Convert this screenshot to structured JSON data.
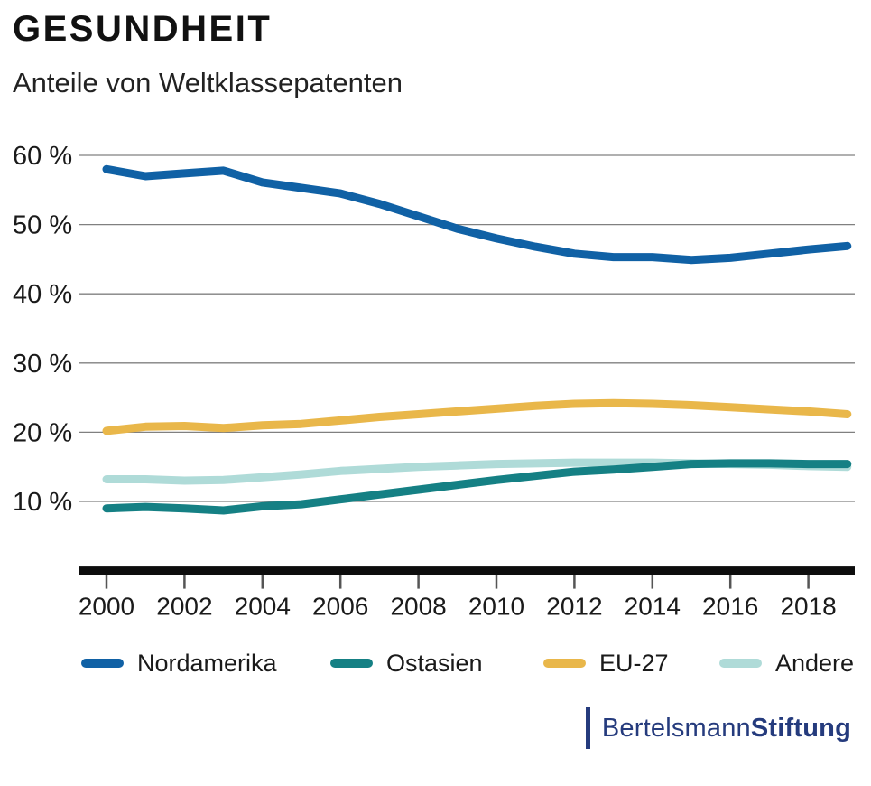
{
  "chart_data": {
    "type": "line",
    "title": "GESUNDHEIT",
    "subtitle": "Anteile von Weltklassepatenten",
    "x": [
      2000,
      2001,
      2002,
      2003,
      2004,
      2005,
      2006,
      2007,
      2008,
      2009,
      2010,
      2011,
      2012,
      2013,
      2014,
      2015,
      2016,
      2017,
      2018,
      2019
    ],
    "series": [
      {
        "name": "Nordamerika",
        "color": "#1061a5",
        "values": [
          58.0,
          57.0,
          57.4,
          57.8,
          56.1,
          55.3,
          54.5,
          53.0,
          51.2,
          49.4,
          48.0,
          46.8,
          45.8,
          45.3,
          45.3,
          44.9,
          45.2,
          45.8,
          46.4,
          46.9
        ]
      },
      {
        "name": "Ostasien",
        "color": "#158084",
        "values": [
          9.0,
          9.2,
          9.0,
          8.7,
          9.3,
          9.6,
          10.3,
          11.0,
          11.7,
          12.4,
          13.1,
          13.7,
          14.3,
          14.6,
          15.0,
          15.4,
          15.5,
          15.5,
          15.4,
          15.4
        ]
      },
      {
        "name": "EU-27",
        "color": "#e9b74a",
        "values": [
          20.2,
          20.8,
          20.9,
          20.6,
          21.0,
          21.2,
          21.7,
          22.2,
          22.6,
          23.0,
          23.4,
          23.8,
          24.1,
          24.2,
          24.1,
          23.9,
          23.6,
          23.3,
          23.0,
          22.6
        ]
      },
      {
        "name": "Andere",
        "color": "#afdbd8",
        "values": [
          13.2,
          13.2,
          13.0,
          13.1,
          13.5,
          13.9,
          14.4,
          14.7,
          15.0,
          15.2,
          15.4,
          15.5,
          15.6,
          15.6,
          15.6,
          15.5,
          15.4,
          15.3,
          15.1,
          15.0
        ]
      }
    ],
    "ylim": [
      0,
      62
    ],
    "yticks": [
      {
        "value": 10,
        "label": "10 %"
      },
      {
        "value": 20,
        "label": "20 %"
      },
      {
        "value": 30,
        "label": "30 %"
      },
      {
        "value": 40,
        "label": "40 %"
      },
      {
        "value": 50,
        "label": "50 %"
      },
      {
        "value": 60,
        "label": "60 %"
      }
    ],
    "xticks": [
      2000,
      2002,
      2004,
      2006,
      2008,
      2010,
      2012,
      2014,
      2016,
      2018
    ],
    "grid": "horizontal",
    "legend_position": "bottom"
  },
  "colors": {
    "grid": "#808080",
    "axis": "#0d0d0d",
    "tick": "#555555",
    "text": "#1a1a1a",
    "brand_navy": "#253b7d"
  },
  "footer": {
    "brand": {
      "regular": "Bertelsmann",
      "bold": "Stiftung"
    }
  }
}
